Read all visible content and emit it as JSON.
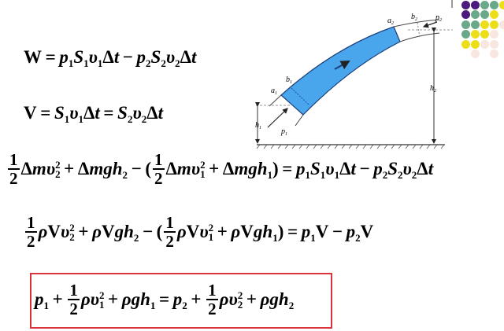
{
  "equations": [
    [
      "W = ",
      "p_1",
      "S_1",
      "υ_1",
      "Δ",
      "t",
      " − ",
      "p_2",
      "S_2",
      "υ_2",
      "Δ",
      "t"
    ],
    [
      "V = ",
      "S_1",
      "υ_1",
      "Δ",
      "t",
      " = ",
      "S_2",
      "υ_2",
      "Δ",
      "t"
    ],
    [
      {
        "frac": [
          "1",
          "2"
        ]
      },
      "Δ",
      "m",
      "υ_2^2",
      " + Δ",
      "m",
      "g",
      "h_2",
      " − (",
      {
        "frac": [
          "1",
          "2"
        ]
      },
      "Δ",
      "m",
      "υ_1^2",
      " + Δ",
      "m",
      "g",
      "h_1",
      ") = ",
      "p_1",
      "S_1",
      "υ_1",
      "Δ",
      "t",
      " − ",
      "p_2",
      "S_2",
      "υ_2",
      "Δ",
      "t"
    ],
    [
      {
        "frac": [
          "1",
          "2"
        ]
      },
      "ρ",
      "V",
      "υ_2^2",
      " + ",
      "ρ",
      "V",
      "g",
      "h_2",
      " − (",
      {
        "frac": [
          "1",
          "2"
        ]
      },
      "ρ",
      "V",
      "υ_1^2",
      " + ",
      "ρ",
      "V",
      "g",
      "h_1",
      ") = ",
      "p_1",
      "V − ",
      "p_2",
      "V"
    ],
    [
      "p_1",
      " + ",
      {
        "frac": [
          "1",
          "2"
        ]
      },
      "ρ",
      "υ_1^2",
      " + ",
      "ρ",
      "g",
      "h_1",
      " = ",
      "p_2",
      " + ",
      {
        "frac": [
          "1",
          "2"
        ]
      },
      "ρ",
      "υ_2^2",
      " + ",
      "ρ",
      "g",
      "h_2"
    ]
  ],
  "diagram": {
    "labels": {
      "a1": "a",
      "a1_sub": "1",
      "b1": "b",
      "b1_sub": "1",
      "p1": "p",
      "p1_sub": "1",
      "h1": "h",
      "h1_sub": "1",
      "h2": "h",
      "h2_sub": "2",
      "a2": "a",
      "a2_sub": "2",
      "b2": "b",
      "b2_sub": "2",
      "p2": "p",
      "p2_sub": "2"
    },
    "fluid_color": "#4aa6ec"
  },
  "decor_dots": {
    "colors": {
      "purple": "#4b1a7c",
      "green": "#6aa88a",
      "yellow": "#ecdf1a",
      "pale": "#f8e6e0"
    },
    "rows": [
      [
        "purple",
        "purple",
        "green",
        "green",
        "yellow"
      ],
      [
        "purple",
        "green",
        "green",
        "yellow"
      ],
      [
        "green",
        "green",
        "yellow",
        "yellow",
        "pale"
      ],
      [
        "green",
        "yellow",
        "yellow",
        "pale"
      ],
      [
        "yellow",
        "yellow",
        "pale",
        "pale"
      ],
      [
        "",
        "pale",
        "",
        "pale"
      ]
    ]
  },
  "highlight_box_color": "#d9333b"
}
